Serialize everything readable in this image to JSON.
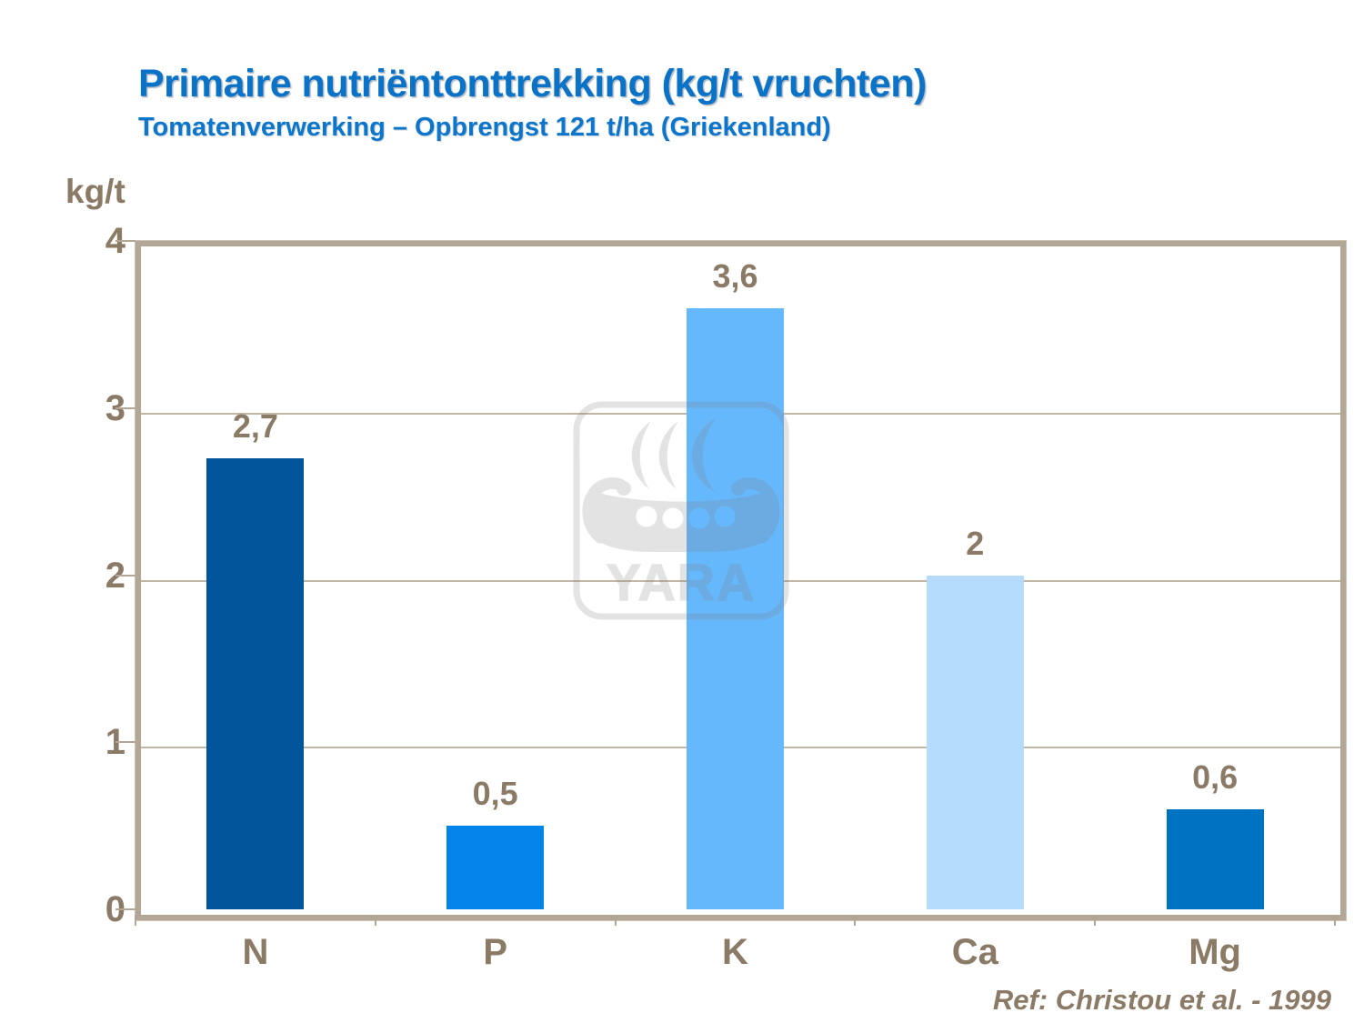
{
  "header": {
    "title": "Primaire nutriëntonttrekking (kg/t vruchten)",
    "subtitle": "Tomatenverwerking – Opbrengst 121 t/ha (Griekenland)"
  },
  "footer": {
    "reference": "Ref: Christou et al. - 1999"
  },
  "watermark": {
    "text": "YARA",
    "icon": "viking-ship-logo"
  },
  "colors": {
    "title_blue": "#0B73C7",
    "text_brown": "#8A7A66",
    "axis_tan": "#B2A696",
    "gridline_tan": "#C4B6A4",
    "background": "#FFFFFF"
  },
  "chart_data": {
    "type": "bar",
    "title": "Primaire nutriëntonttrekking (kg/t vruchten)",
    "subtitle": "Tomatenverwerking – Opbrengst 121 t/ha (Griekenland)",
    "ylabel": "kg/t",
    "xlabel": "",
    "ylim": [
      0,
      4
    ],
    "yticks": [
      4,
      3,
      2,
      1,
      0
    ],
    "grid": true,
    "legend": false,
    "categories": [
      "N",
      "P",
      "K",
      "Ca",
      "Mg"
    ],
    "values": [
      2.7,
      0.5,
      3.6,
      2,
      0.6
    ],
    "value_labels": [
      "2,7",
      "0,5",
      "3,6",
      "2",
      "0,6"
    ],
    "bar_colors": [
      "#00559B",
      "#0384E8",
      "#66B8FC",
      "#B5DCFC",
      "#0072C2"
    ]
  }
}
